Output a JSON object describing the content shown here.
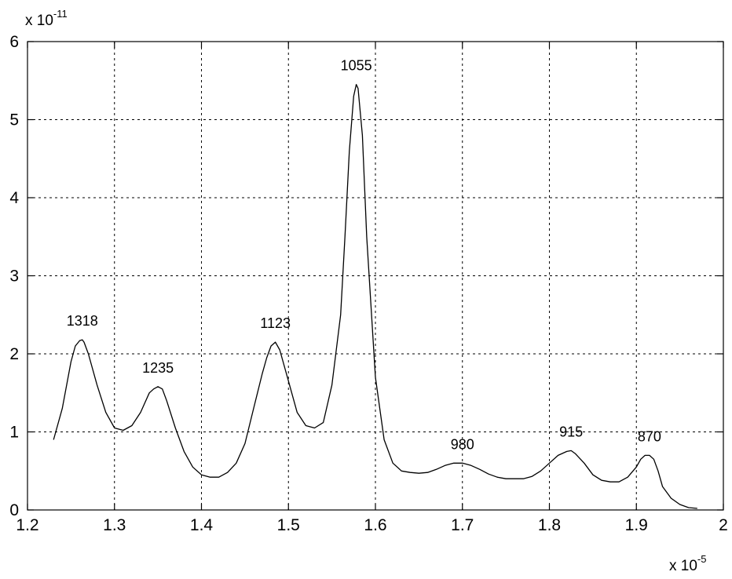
{
  "chart_data": {
    "type": "line",
    "title": "",
    "xlabel": "",
    "ylabel": "",
    "x_exponent": {
      "base": "x 10",
      "power": "-5"
    },
    "y_exponent": {
      "base": "x 10",
      "power": "-11"
    },
    "xlim": [
      1.2,
      2.0
    ],
    "ylim": [
      0,
      6
    ],
    "xticks": [
      1.2,
      1.3,
      1.4,
      1.5,
      1.6,
      1.7,
      1.8,
      1.9,
      2.0
    ],
    "xtick_labels": [
      "1.2",
      "1.3",
      "1.4",
      "1.5",
      "1.6",
      "1.7",
      "1.8",
      "1.9",
      "2"
    ],
    "yticks": [
      0,
      1,
      2,
      3,
      4,
      5,
      6
    ],
    "ytick_labels": [
      "0",
      "1",
      "2",
      "3",
      "4",
      "5",
      "6"
    ],
    "grid": true,
    "series": [
      {
        "x": [
          1.23,
          1.24,
          1.25,
          1.255,
          1.26,
          1.263,
          1.265,
          1.27,
          1.28,
          1.29,
          1.3,
          1.31,
          1.32,
          1.33,
          1.34,
          1.345,
          1.35,
          1.355,
          1.36,
          1.37,
          1.38,
          1.39,
          1.4,
          1.41,
          1.42,
          1.43,
          1.44,
          1.45,
          1.46,
          1.47,
          1.475,
          1.48,
          1.485,
          1.49,
          1.5,
          1.51,
          1.52,
          1.53,
          1.54,
          1.55,
          1.56,
          1.565,
          1.57,
          1.575,
          1.578,
          1.58,
          1.585,
          1.59,
          1.6,
          1.61,
          1.62,
          1.63,
          1.64,
          1.65,
          1.66,
          1.67,
          1.68,
          1.69,
          1.7,
          1.71,
          1.72,
          1.73,
          1.74,
          1.75,
          1.76,
          1.77,
          1.78,
          1.79,
          1.8,
          1.81,
          1.82,
          1.825,
          1.83,
          1.84,
          1.85,
          1.86,
          1.87,
          1.88,
          1.89,
          1.9,
          1.905,
          1.91,
          1.915,
          1.92,
          1.925,
          1.93,
          1.94,
          1.95,
          1.96,
          1.97
        ],
        "values": [
          0.9,
          1.3,
          1.9,
          2.1,
          2.17,
          2.18,
          2.15,
          2.0,
          1.6,
          1.25,
          1.05,
          1.02,
          1.08,
          1.25,
          1.5,
          1.55,
          1.58,
          1.55,
          1.4,
          1.05,
          0.75,
          0.55,
          0.45,
          0.42,
          0.42,
          0.48,
          0.6,
          0.85,
          1.3,
          1.75,
          1.95,
          2.1,
          2.15,
          2.05,
          1.65,
          1.25,
          1.08,
          1.05,
          1.12,
          1.6,
          2.5,
          3.5,
          4.6,
          5.3,
          5.45,
          5.4,
          4.8,
          3.5,
          1.7,
          0.9,
          0.6,
          0.5,
          0.48,
          0.47,
          0.48,
          0.52,
          0.57,
          0.6,
          0.6,
          0.57,
          0.52,
          0.46,
          0.42,
          0.4,
          0.4,
          0.4,
          0.43,
          0.5,
          0.6,
          0.7,
          0.75,
          0.76,
          0.72,
          0.6,
          0.45,
          0.38,
          0.36,
          0.36,
          0.42,
          0.55,
          0.65,
          0.7,
          0.7,
          0.65,
          0.5,
          0.3,
          0.15,
          0.07,
          0.03,
          0.02
        ]
      }
    ],
    "annotations": [
      {
        "text": "1318",
        "x": 1.263,
        "y": 2.18
      },
      {
        "text": "1235",
        "x": 1.35,
        "y": 1.58
      },
      {
        "text": "1123",
        "x": 1.485,
        "y": 2.15
      },
      {
        "text": "1055",
        "x": 1.578,
        "y": 5.45
      },
      {
        "text": "980",
        "x": 1.7,
        "y": 0.6
      },
      {
        "text": "915",
        "x": 1.825,
        "y": 0.76
      },
      {
        "text": "870",
        "x": 1.915,
        "y": 0.7
      }
    ]
  }
}
